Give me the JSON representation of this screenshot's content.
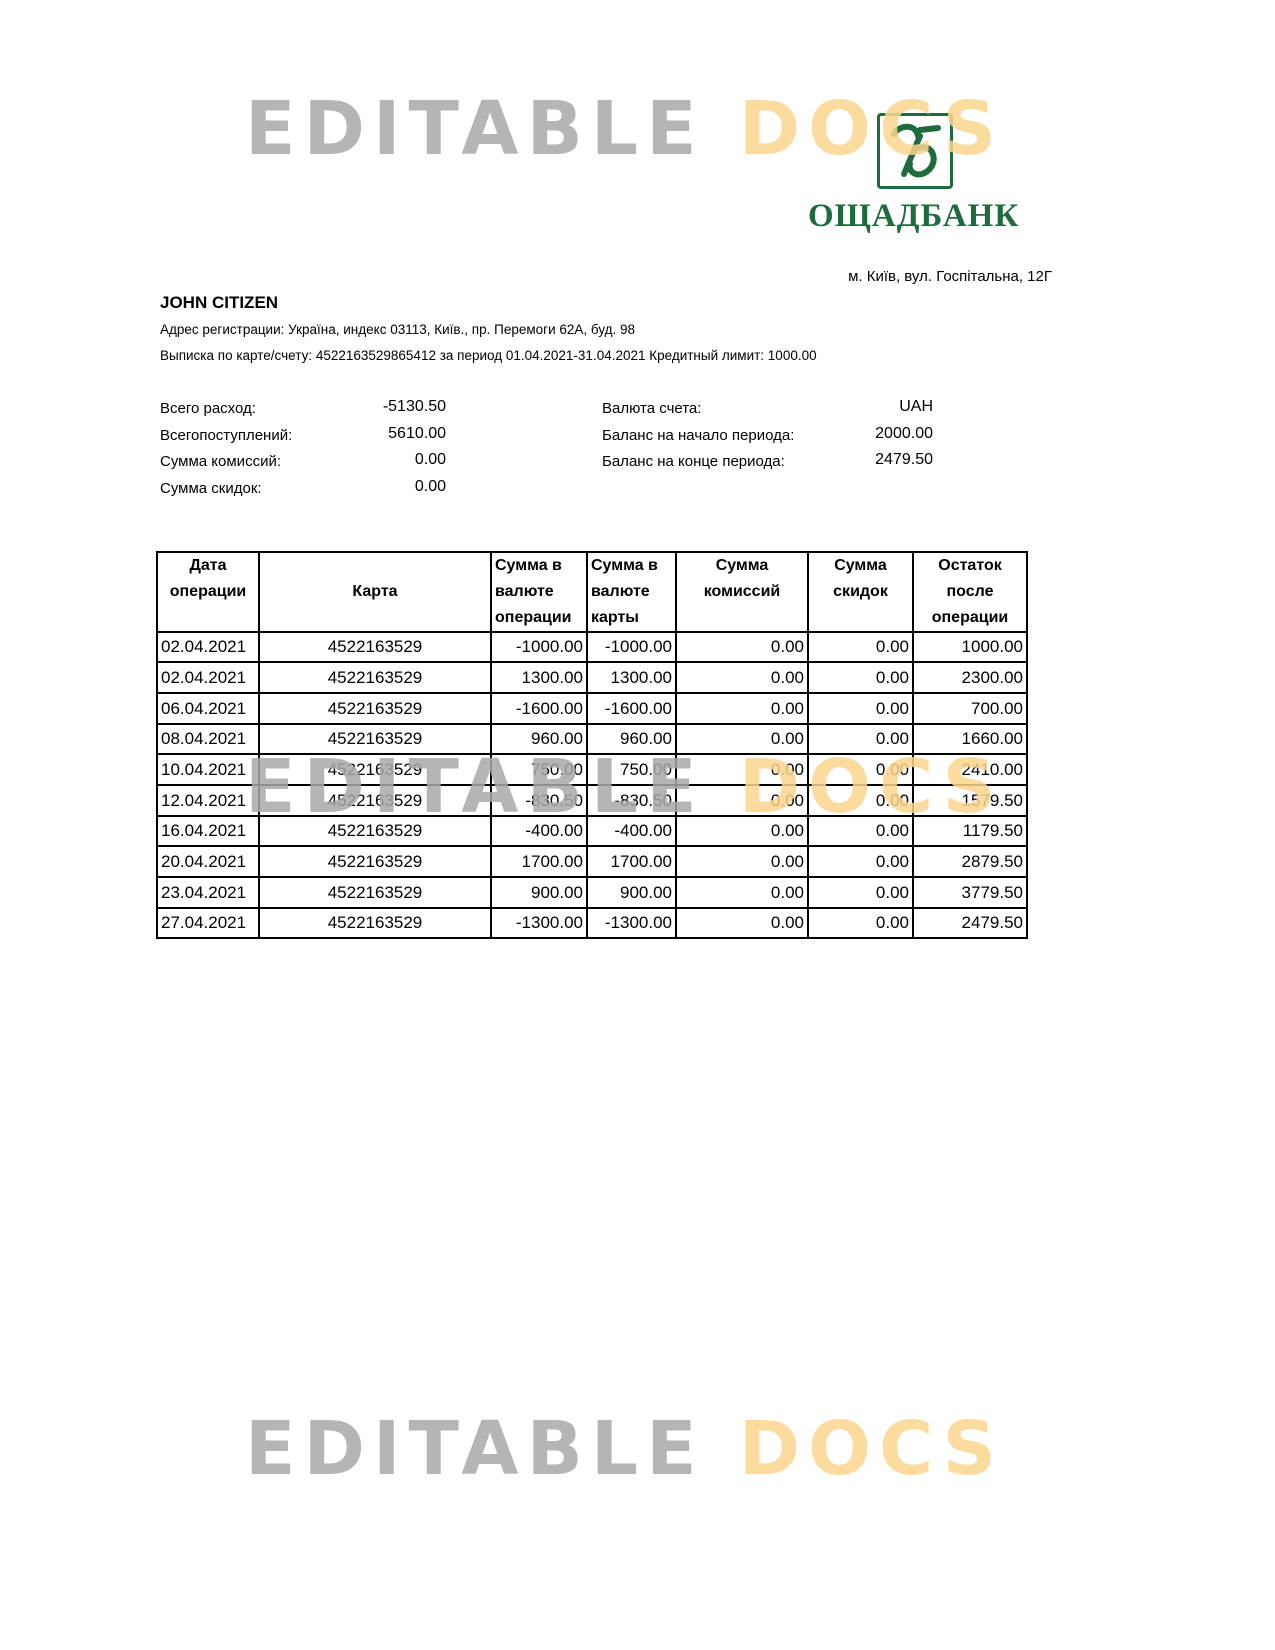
{
  "watermark": {
    "part1": "EDITABLE",
    "part2": "DOCS"
  },
  "bank": {
    "name": "ОЩАДБАНК",
    "address": "м. Київ, вул. Госпітальна, 12Г",
    "brand_color": "#1e6b3e"
  },
  "client": {
    "name": "JOHN CITIZEN",
    "registration": "Адрес регистрации: Україна, индекс 03113, Київ., пр. Перемоги 62А, буд. 98",
    "statement": "Выписка по карте/счету: 4522163529865412 за период 01.04.2021-31.04.2021 Кредитный лимит: 1000.00"
  },
  "summary_left": [
    {
      "label": "Всего расход:",
      "value": "-5130.50"
    },
    {
      "label": "Всегопоступлений:",
      "value": "5610.00"
    },
    {
      "label": "Сумма комиссий:",
      "value": "0.00"
    },
    {
      "label": "Сумма скидок:",
      "value": "0.00"
    }
  ],
  "summary_right": [
    {
      "label": "Валюта счета:",
      "value": "UAH"
    },
    {
      "label": "Баланс на начало периода:",
      "value": "2000.00"
    },
    {
      "label": "Баланс на конце периода:",
      "value": "2479.50"
    }
  ],
  "table": {
    "headers": [
      "Дата операции",
      "Карта",
      "Сумма в валюте операции",
      "Сумма в валюте карты",
      "Сумма комиссий",
      "Сумма скидок",
      "Остаток после операции"
    ],
    "rows": [
      [
        "02.04.2021",
        "4522163529",
        "-1000.00",
        "-1000.00",
        "0.00",
        "0.00",
        "1000.00"
      ],
      [
        "02.04.2021",
        "4522163529",
        "1300.00",
        "1300.00",
        "0.00",
        "0.00",
        "2300.00"
      ],
      [
        "06.04.2021",
        "4522163529",
        "-1600.00",
        "-1600.00",
        "0.00",
        "0.00",
        "700.00"
      ],
      [
        "08.04.2021",
        "4522163529",
        "960.00",
        "960.00",
        "0.00",
        "0.00",
        "1660.00"
      ],
      [
        "10.04.2021",
        "4522163529",
        "750.00",
        "750.00",
        "0.00",
        "0.00",
        "2410.00"
      ],
      [
        "12.04.2021",
        "4522163529",
        "-830.50",
        "-830.50",
        "0.00",
        "0.00",
        "1579.50"
      ],
      [
        "16.04.2021",
        "4522163529",
        "-400.00",
        "-400.00",
        "0.00",
        "0.00",
        "1179.50"
      ],
      [
        "20.04.2021",
        "4522163529",
        "1700.00",
        "1700.00",
        "0.00",
        "0.00",
        "2879.50"
      ],
      [
        "23.04.2021",
        "4522163529",
        "900.00",
        "900.00",
        "0.00",
        "0.00",
        "3779.50"
      ],
      [
        "27.04.2021",
        "4522163529",
        "-1300.00",
        "-1300.00",
        "0.00",
        "0.00",
        "2479.50"
      ]
    ]
  }
}
